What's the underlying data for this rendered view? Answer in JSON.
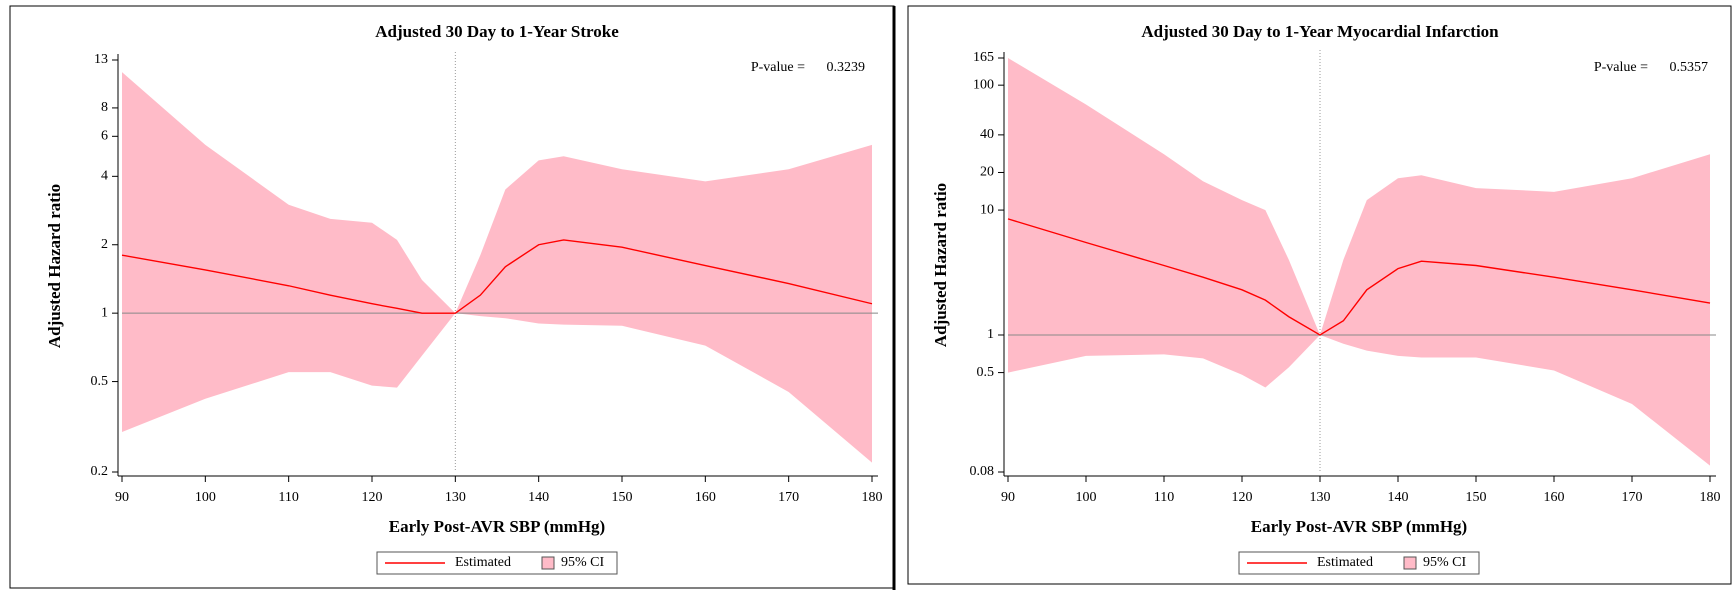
{
  "chart_data": [
    {
      "type": "line",
      "title": "Adjusted 30 Day to 1-Year Stroke",
      "xlabel": "Early Post-AVR SBP (mmHg)",
      "ylabel": "Adjusted Hazard ratio",
      "annotation": {
        "label": "P-value =",
        "value": "0.3239"
      },
      "x": [
        90,
        100,
        110,
        115,
        120,
        123,
        126,
        130,
        133,
        136,
        140,
        143,
        150,
        160,
        170,
        180
      ],
      "series": [
        {
          "name": "Estimated",
          "color": "#ff0000",
          "values": [
            1.8,
            1.55,
            1.32,
            1.2,
            1.1,
            1.05,
            1.0,
            1.0,
            1.2,
            1.6,
            2.0,
            2.1,
            1.95,
            1.62,
            1.35,
            1.1
          ]
        },
        {
          "name": "95% CI",
          "color": "#ffbbc8",
          "upper": [
            11.5,
            5.5,
            3.0,
            2.6,
            2.5,
            2.1,
            1.4,
            1.0,
            1.8,
            3.5,
            4.7,
            4.9,
            4.3,
            3.8,
            4.3,
            5.5
          ],
          "lower": [
            0.3,
            0.42,
            0.55,
            0.55,
            0.48,
            0.47,
            0.65,
            1.0,
            0.97,
            0.95,
            0.9,
            0.89,
            0.88,
            0.72,
            0.45,
            0.22
          ]
        }
      ],
      "xlim": [
        90,
        180
      ],
      "xticks": [
        90,
        100,
        110,
        120,
        130,
        140,
        150,
        160,
        170,
        180
      ],
      "ylim": [
        0.2,
        13
      ],
      "yticks": [
        0.2,
        0.5,
        1,
        2,
        4,
        6,
        8,
        13
      ],
      "log_y": true,
      "hline": 1,
      "vline": 130
    },
    {
      "type": "line",
      "title": "Adjusted 30 Day to 1-Year Myocardial Infarction",
      "xlabel": "Early Post-AVR SBP (mmHg)",
      "ylabel": "Adjusted Hazard ratio",
      "annotation": {
        "label": "P-value =",
        "value": "0.5357"
      },
      "x": [
        90,
        100,
        110,
        115,
        120,
        123,
        126,
        130,
        133,
        136,
        140,
        143,
        150,
        160,
        170,
        180
      ],
      "series": [
        {
          "name": "Estimated",
          "color": "#ff0000",
          "values": [
            8.5,
            5.5,
            3.6,
            2.9,
            2.3,
            1.9,
            1.4,
            1.0,
            1.3,
            2.3,
            3.4,
            3.9,
            3.6,
            2.9,
            2.3,
            1.8
          ]
        },
        {
          "name": "95% CI",
          "color": "#ffbbc8",
          "upper": [
            165,
            70,
            28,
            17,
            12,
            10,
            4,
            1.0,
            4,
            12,
            18,
            19,
            15,
            14,
            18,
            28
          ],
          "lower": [
            0.5,
            0.68,
            0.7,
            0.65,
            0.48,
            0.38,
            0.55,
            1.0,
            0.85,
            0.75,
            0.68,
            0.66,
            0.66,
            0.52,
            0.28,
            0.09
          ]
        }
      ],
      "xlim": [
        90,
        180
      ],
      "xticks": [
        90,
        100,
        110,
        120,
        130,
        140,
        150,
        160,
        170,
        180
      ],
      "ylim": [
        0.08,
        165
      ],
      "yticks": [
        0.08,
        0.5,
        1,
        10,
        20,
        40,
        100,
        165
      ],
      "log_y": true,
      "hline": 1,
      "vline": 130
    }
  ]
}
